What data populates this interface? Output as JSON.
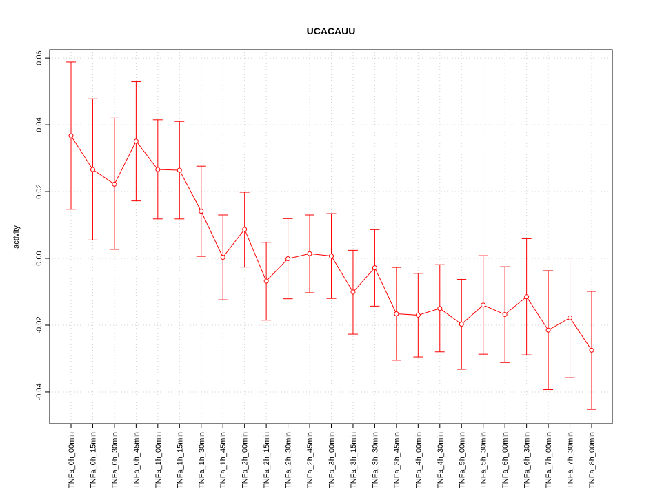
{
  "chart_data": {
    "type": "line",
    "title": "UCACAUU",
    "xlabel": "",
    "ylabel": "activity",
    "ylim": [
      -0.0495,
      0.0625
    ],
    "yticks": [
      -0.04,
      -0.02,
      0.0,
      0.02,
      0.04,
      0.06
    ],
    "ytick_labels": [
      "-0.04",
      "-0.02",
      "0.00",
      "0.02",
      "0.04",
      "0.06"
    ],
    "grid": true,
    "color": "#ff0000",
    "categories": [
      "TNFa_0h_00min",
      "TNFa_0h_15min",
      "TNFa_0h_30min",
      "TNFa_0h_45min",
      "TNFa_1h_00min",
      "TNFa_1h_15min",
      "TNFa_1h_30min",
      "TNFa_1h_45min",
      "TNFa_2h_00min",
      "TNFa_2h_15min",
      "TNFa_2h_30min",
      "TNFa_2h_45min",
      "TNFa_3h_00min",
      "TNFa_3h_15min",
      "TNFa_3h_30min",
      "TNFa_3h_45min",
      "TNFa_4h_00min",
      "TNFa_4h_30min",
      "TNFa_5h_00min",
      "TNFa_5h_30min",
      "TNFa_6h_00min",
      "TNFa_6h_30min",
      "TNFa_7h_00min",
      "TNFa_7h_30min",
      "TNFa_8h_00min"
    ],
    "values": [
      0.0367,
      0.0266,
      0.0222,
      0.0351,
      0.0266,
      0.0264,
      0.0141,
      0.0003,
      0.0087,
      -0.0068,
      -0.0001,
      0.0014,
      0.0007,
      -0.0101,
      -0.0028,
      -0.0166,
      -0.017,
      -0.015,
      -0.0197,
      -0.014,
      -0.0168,
      -0.0115,
      -0.0215,
      -0.0178,
      -0.0275
    ],
    "upper": [
      0.0588,
      0.0478,
      0.042,
      0.0529,
      0.0415,
      0.041,
      0.0276,
      0.013,
      0.0198,
      0.0048,
      0.0119,
      0.013,
      0.0134,
      0.0024,
      0.0086,
      -0.0027,
      -0.0045,
      -0.0019,
      -0.0063,
      0.0008,
      -0.0025,
      0.0059,
      -0.0037,
      0.0001,
      -0.0099
    ],
    "lower": [
      0.0147,
      0.0055,
      0.0027,
      0.0172,
      0.0118,
      0.0118,
      0.0006,
      -0.0124,
      -0.0026,
      -0.0185,
      -0.0121,
      -0.0103,
      -0.012,
      -0.0227,
      -0.0143,
      -0.0305,
      -0.0295,
      -0.028,
      -0.0332,
      -0.0287,
      -0.0312,
      -0.0289,
      -0.0393,
      -0.0357,
      -0.0452
    ]
  }
}
